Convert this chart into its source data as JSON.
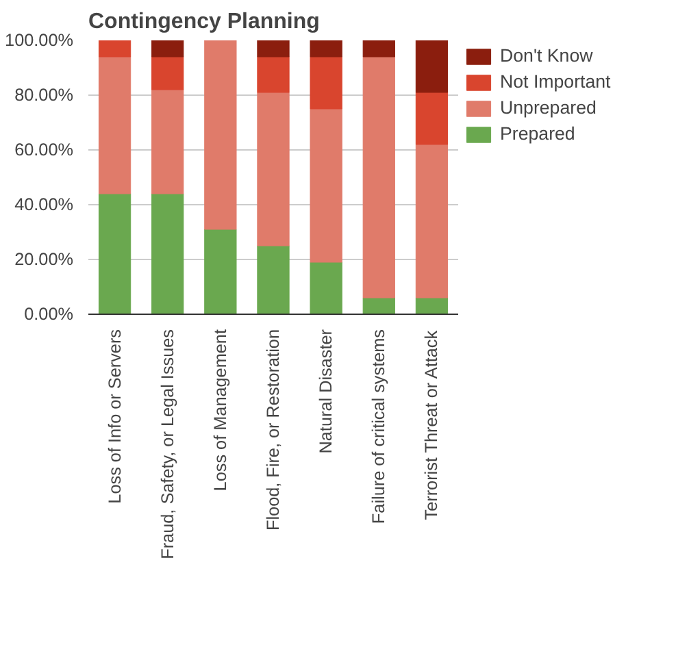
{
  "chart_data": {
    "type": "bar",
    "title": "Contingency Planning",
    "stacked": true,
    "categories": [
      "Loss of Info or Servers",
      "Fraud, Safety, or Legal Issues",
      "Loss of Management",
      "Flood, Fire, or Restoration",
      "Natural Disaster",
      "Failure of critical systems",
      "Terrorist Threat or Attack"
    ],
    "series": [
      {
        "name": "Prepared",
        "color": "#6aa84f",
        "values": [
          44,
          44,
          31,
          25,
          19,
          6,
          6
        ]
      },
      {
        "name": "Unprepared",
        "color": "#e07b6a",
        "values": [
          50,
          38,
          69,
          56,
          56,
          88,
          56
        ]
      },
      {
        "name": "Not Important",
        "color": "#d9452e",
        "values": [
          6,
          12,
          0,
          13,
          19,
          0,
          19
        ]
      },
      {
        "name": "Don't Know",
        "color": "#8b1e0e",
        "values": [
          0,
          6,
          0,
          6,
          6,
          6,
          19
        ]
      }
    ],
    "ylim": [
      0,
      100
    ],
    "yticks": [
      {
        "value": 0,
        "label": "0.00%"
      },
      {
        "value": 20,
        "label": "20.00%"
      },
      {
        "value": 40,
        "label": "40.00%"
      },
      {
        "value": 60,
        "label": "60.00%"
      },
      {
        "value": 80,
        "label": "80.00%"
      },
      {
        "value": 100,
        "label": "100.00%"
      }
    ],
    "grid": "y",
    "legend": "right"
  }
}
